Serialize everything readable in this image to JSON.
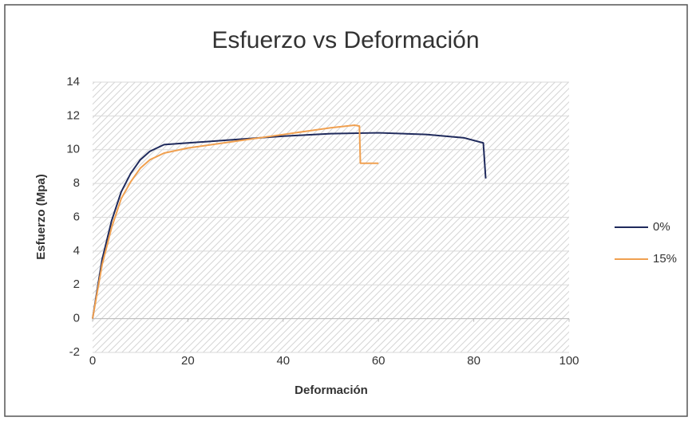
{
  "chart_data": {
    "type": "line",
    "title": "Esfuerzo vs Deformación",
    "xlabel": "Deformación",
    "ylabel": "Esfuerzo (Mpa)",
    "xlim": [
      0,
      100
    ],
    "ylim": [
      -2,
      14
    ],
    "xticks": [
      0,
      20,
      40,
      60,
      80,
      100
    ],
    "yticks": [
      -2,
      0,
      2,
      4,
      6,
      8,
      10,
      12,
      14
    ],
    "grid": true,
    "legend": "right",
    "series": [
      {
        "name": "0%",
        "color": "#1f2a5c",
        "x": [
          0,
          2,
          4,
          6,
          8,
          10,
          12,
          15,
          20,
          30,
          40,
          50,
          60,
          70,
          78,
          82,
          82.5
        ],
        "values": [
          0,
          3.5,
          5.8,
          7.5,
          8.6,
          9.4,
          9.9,
          10.3,
          10.4,
          10.6,
          10.8,
          10.95,
          11.0,
          10.9,
          10.7,
          10.4,
          8.3
        ]
      },
      {
        "name": "15%",
        "color": "#f0a050",
        "x": [
          0,
          2,
          4,
          6,
          8,
          10,
          12,
          15,
          20,
          30,
          40,
          50,
          55,
          56,
          56.2,
          60
        ],
        "values": [
          0,
          3.2,
          5.4,
          7.1,
          8.1,
          8.9,
          9.4,
          9.8,
          10.1,
          10.5,
          10.9,
          11.3,
          11.45,
          11.4,
          9.2,
          9.2
        ]
      }
    ]
  }
}
